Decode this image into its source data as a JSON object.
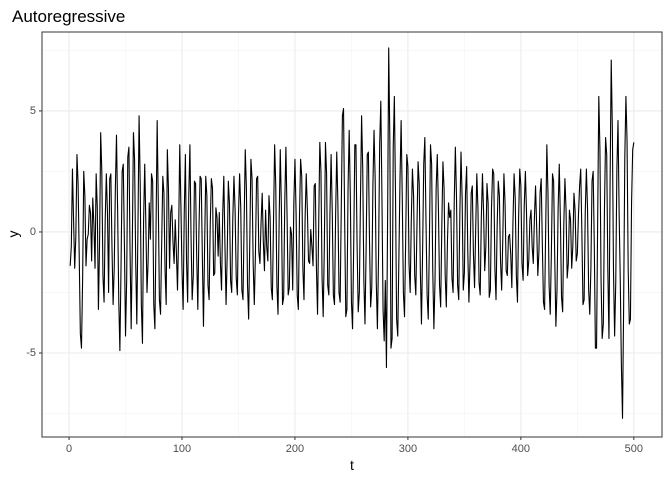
{
  "chart_data": {
    "type": "line",
    "title": "Autoregressive",
    "x_label": "t",
    "y_label": "y",
    "xlim": [
      -23.95,
      524.95
    ],
    "ylim": [
      -8.47,
      8.26
    ],
    "xticks": [
      0,
      100,
      200,
      300,
      400,
      500
    ],
    "yticks": [
      -5,
      0,
      5
    ],
    "x_minor_ticks": [
      50,
      150,
      250,
      350,
      450
    ],
    "y_minor_ticks": [
      -7.5,
      -2.5,
      2.5,
      7.5
    ],
    "grid": true,
    "color": "#000000",
    "x": [
      1,
      2,
      3,
      4,
      5,
      6,
      7,
      8,
      9,
      10,
      11,
      12,
      13,
      14,
      15,
      16,
      17,
      18,
      19,
      20,
      21,
      22,
      23,
      24,
      25,
      26,
      27,
      28,
      29,
      30,
      31,
      32,
      33,
      34,
      35,
      36,
      37,
      38,
      39,
      40,
      41,
      42,
      43,
      44,
      45,
      46,
      47,
      48,
      49,
      50,
      51,
      52,
      53,
      54,
      55,
      56,
      57,
      58,
      59,
      60,
      61,
      62,
      63,
      64,
      65,
      66,
      67,
      68,
      69,
      70,
      71,
      72,
      73,
      74,
      75,
      76,
      77,
      78,
      79,
      80,
      81,
      82,
      83,
      84,
      85,
      86,
      87,
      88,
      89,
      90,
      91,
      92,
      93,
      94,
      95,
      96,
      97,
      98,
      99,
      100,
      101,
      102,
      103,
      104,
      105,
      106,
      107,
      108,
      109,
      110,
      111,
      112,
      113,
      114,
      115,
      116,
      117,
      118,
      119,
      120,
      121,
      122,
      123,
      124,
      125,
      126,
      127,
      128,
      129,
      130,
      131,
      132,
      133,
      134,
      135,
      136,
      137,
      138,
      139,
      140,
      141,
      142,
      143,
      144,
      145,
      146,
      147,
      148,
      149,
      150,
      151,
      152,
      153,
      154,
      155,
      156,
      157,
      158,
      159,
      160,
      161,
      162,
      163,
      164,
      165,
      166,
      167,
      168,
      169,
      170,
      171,
      172,
      173,
      174,
      175,
      176,
      177,
      178,
      179,
      180,
      181,
      182,
      183,
      184,
      185,
      186,
      187,
      188,
      189,
      190,
      191,
      192,
      193,
      194,
      195,
      196,
      197,
      198,
      199,
      200,
      201,
      202,
      203,
      204,
      205,
      206,
      207,
      208,
      209,
      210,
      211,
      212,
      213,
      214,
      215,
      216,
      217,
      218,
      219,
      220,
      221,
      222,
      223,
      224,
      225,
      226,
      227,
      228,
      229,
      230,
      231,
      232,
      233,
      234,
      235,
      236,
      237,
      238,
      239,
      240,
      241,
      242,
      243,
      244,
      245,
      246,
      247,
      248,
      249,
      250,
      251,
      252,
      253,
      254,
      255,
      256,
      257,
      258,
      259,
      260,
      261,
      262,
      263,
      264,
      265,
      266,
      267,
      268,
      269,
      270,
      271,
      272,
      273,
      274,
      275,
      276,
      277,
      278,
      279,
      280,
      281,
      282,
      283,
      284,
      285,
      286,
      287,
      288,
      289,
      290,
      291,
      292,
      293,
      294,
      295,
      296,
      297,
      298,
      299,
      300,
      301,
      302,
      303,
      304,
      305,
      306,
      307,
      308,
      309,
      310,
      311,
      312,
      313,
      314,
      315,
      316,
      317,
      318,
      319,
      320,
      321,
      322,
      323,
      324,
      325,
      326,
      327,
      328,
      329,
      330,
      331,
      332,
      333,
      334,
      335,
      336,
      337,
      338,
      339,
      340,
      341,
      342,
      343,
      344,
      345,
      346,
      347,
      348,
      349,
      350,
      351,
      352,
      353,
      354,
      355,
      356,
      357,
      358,
      359,
      360,
      361,
      362,
      363,
      364,
      365,
      366,
      367,
      368,
      369,
      370,
      371,
      372,
      373,
      374,
      375,
      376,
      377,
      378,
      379,
      380,
      381,
      382,
      383,
      384,
      385,
      386,
      387,
      388,
      389,
      390,
      391,
      392,
      393,
      394,
      395,
      396,
      397,
      398,
      399,
      400,
      401,
      402,
      403,
      404,
      405,
      406,
      407,
      408,
      409,
      410,
      411,
      412,
      413,
      414,
      415,
      416,
      417,
      418,
      419,
      420,
      421,
      422,
      423,
      424,
      425,
      426,
      427,
      428,
      429,
      430,
      431,
      432,
      433,
      434,
      435,
      436,
      437,
      438,
      439,
      440,
      441,
      442,
      443,
      444,
      445,
      446,
      447,
      448,
      449,
      450,
      451,
      452,
      453,
      454,
      455,
      456,
      457,
      458,
      459,
      460,
      461,
      462,
      463,
      464,
      465,
      466,
      467,
      468,
      469,
      470,
      471,
      472,
      473,
      474,
      475,
      476,
      477,
      478,
      479,
      480,
      481,
      482,
      483,
      484,
      485,
      486,
      487,
      488,
      489,
      490,
      491,
      492,
      493,
      494,
      495,
      496,
      497,
      498,
      499,
      500
    ],
    "values": [
      -1.4,
      -0.6,
      2.6,
      0.5,
      -1.5,
      -0.2,
      3.2,
      2.0,
      -1.0,
      -4.2,
      -4.8,
      -2.0,
      2.5,
      1.5,
      -1.4,
      -0.3,
      -0.1,
      1.1,
      0.8,
      -1.2,
      1.4,
      0.3,
      -1.5,
      2.4,
      1.0,
      -3.2,
      -0.5,
      4.1,
      2.5,
      -1.8,
      -2.9,
      0.5,
      2.4,
      0.8,
      -2.5,
      2.2,
      2.4,
      -0.6,
      -3.0,
      -1.5,
      1.8,
      4.0,
      0.9,
      -2.8,
      -4.9,
      -1.5,
      2.5,
      2.8,
      -0.5,
      -4.3,
      -2.0,
      3.1,
      3.5,
      -0.8,
      -4.0,
      -0.5,
      4.1,
      3.0,
      -1.2,
      -3.8,
      0.2,
      4.8,
      2.0,
      -3.0,
      -4.6,
      0.5,
      2.8,
      0.3,
      -2.5,
      -1.2,
      1.2,
      -0.3,
      2.4,
      2.1,
      -3.0,
      -4.0,
      0.1,
      4.6,
      1.2,
      -2.8,
      -3.4,
      -0.5,
      2.3,
      1.6,
      -1.6,
      -3.0,
      3.4,
      1.8,
      -1.5,
      0.8,
      1.1,
      -0.4,
      -1.3,
      0.5,
      -0.8,
      -2.4,
      -0.1,
      3.6,
      1.1,
      -1.6,
      -3.2,
      0.8,
      3.2,
      -1.2,
      -2.9,
      1.5,
      3.6,
      -0.2,
      -2.8,
      -1.8,
      2.1,
      2.0,
      -1.0,
      -3.2,
      0.1,
      2.3,
      2.2,
      -1.0,
      -3.9,
      -0.6,
      2.3,
      1.5,
      -2.2,
      -2.8,
      0.3,
      2.2,
      1.8,
      -1.8,
      -1.7,
      1.0,
      0.6,
      -1.0,
      0.8,
      -1.3,
      -2.4,
      0.7,
      2.3,
      -0.5,
      -3.0,
      -1.0,
      2.1,
      1.2,
      -2.0,
      -2.5,
      0.6,
      2.3,
      0.9,
      -1.9,
      -2.6,
      0.7,
      2.4,
      1.0,
      -2.4,
      -2.8,
      0.4,
      3.4,
      1.8,
      -2.2,
      -3.6,
      -0.4,
      3.0,
      2.2,
      -1.3,
      -3.0,
      -0.9,
      2.2,
      2.3,
      -0.8,
      -1.3,
      0.4,
      1.6,
      -0.4,
      -1.6,
      0.9,
      -0.6,
      -1.2,
      1.5,
      0.6,
      -2.3,
      -2.8,
      0.4,
      3.6,
      1.9,
      -2.2,
      -3.4,
      0.5,
      3.4,
      1.0,
      -3.0,
      -2.7,
      1.3,
      3.5,
      0.7,
      -2.6,
      -2.3,
      0.2,
      -0.1,
      -2.4,
      1.2,
      3.0,
      0.8,
      -2.6,
      -3.2,
      0.6,
      3.0,
      2.3,
      -1.5,
      -2.8,
      0.6,
      2.4,
      0.9,
      -1.2,
      -1.3,
      0.1,
      -0.6,
      -1.4,
      1.9,
      2.0,
      -1.5,
      -3.4,
      0.3,
      3.7,
      2.5,
      -1.9,
      -3.5,
      -0.6,
      3.7,
      2.4,
      -2.2,
      -2.6,
      0.8,
      3.2,
      0.9,
      -2.6,
      -3.0,
      0.7,
      3.3,
      1.2,
      -2.5,
      -2.9,
      1.0,
      4.8,
      5.1,
      0.5,
      -3.5,
      -3.2,
      1.8,
      4.2,
      1.5,
      -2.9,
      -4.0,
      -0.6,
      3.6,
      3.6,
      -0.5,
      -3.3,
      -2.5,
      1.4,
      4.8,
      2.6,
      -2.0,
      -3.8,
      -0.7,
      3.2,
      3.3,
      -0.4,
      -3.1,
      -2.3,
      1.9,
      4.2,
      2.2,
      -2.1,
      -4.0,
      -1.0,
      3.6,
      5.4,
      1.5,
      -3.2,
      -4.5,
      -2.0,
      -5.6,
      0.4,
      7.6,
      3.8,
      -4.8,
      -4.4,
      3.5,
      5.6,
      1.6,
      -3.6,
      -4.3,
      -1.1,
      2.2,
      4.6,
      1.4,
      -2.5,
      -3.5,
      -0.4,
      3.2,
      2.7,
      -1.3,
      -2.5,
      0.5,
      2.6,
      1.5,
      -1.8,
      -2.6,
      0.2,
      2.9,
      2.0,
      -1.6,
      -3.8,
      -0.8,
      2.8,
      3.9,
      0.5,
      -2.6,
      -3.6,
      -0.5,
      3.6,
      2.8,
      -1.6,
      -4.0,
      -2.0,
      1.8,
      3.2,
      1.0,
      -2.2,
      -3.1,
      0.2,
      2.9,
      1.8,
      -1.8,
      -3.1,
      -0.4,
      1.2,
      0.6,
      0.9,
      -1.9,
      -2.5,
      1.2,
      3.5,
      1.5,
      -2.2,
      -2.8,
      0.8,
      3.3,
      1.4,
      -2.4,
      -1.7,
      1.6,
      2.7,
      -0.8,
      -2.9,
      -1.2,
      1.6,
      1.9,
      -0.9,
      -2.3,
      0.1,
      2.4,
      1.0,
      -2.1,
      -2.6,
      0.6,
      2.4,
      0.8,
      -1.6,
      -0.6,
      2.0,
      1.2,
      -2.7,
      -2.4,
      1.0,
      2.6,
      2.4,
      -1.5,
      -2.8,
      0.2,
      2.1,
      1.5,
      -1.2,
      -2.4,
      -0.3,
      2.4,
      1.2,
      -1.6,
      -1.8,
      -0.2,
      -0.1,
      -0.9,
      -2.3,
      0.4,
      2.4,
      1.4,
      -1.8,
      -2.9,
      0.6,
      2.6,
      1.9,
      -1.3,
      -2.0,
      1.1,
      2.5,
      0.8,
      -1.8,
      -1.2,
      0.5,
      0.9,
      -0.6,
      -1.3,
      0.6,
      1.9,
      0.2,
      -1.8,
      -0.8,
      1.6,
      2.2,
      -0.5,
      -2.9,
      -3.2,
      0.2,
      3.6,
      1.6,
      -2.2,
      -3.4,
      -0.9,
      2.4,
      2.1,
      -1.1,
      -3.9,
      -2.4,
      1.0,
      2.8,
      0.5,
      -2.7,
      -3.3,
      0.3,
      2.2,
      0.9,
      -1.9,
      -1.3,
      0.9,
      0.5,
      -1.5,
      -0.6,
      1.6,
      0.9,
      -1.2,
      -0.9,
      0.7,
      1.9,
      2.6,
      0.0,
      -3.0,
      -2.8,
      0.8,
      2.6,
      1.0,
      -2.4,
      -3.4,
      -1.5,
      2.1,
      2.5,
      -0.5,
      -4.8,
      -4.8,
      0.5,
      5.6,
      3.4,
      -2.0,
      -4.4,
      -3.8,
      0.9,
      3.9,
      3.2,
      -1.6,
      -4.4,
      2.1,
      7.1,
      4.2,
      -1.6,
      -4.3,
      -2.1,
      2.6,
      4.6,
      0.8,
      -2.0,
      -5.5,
      -7.7,
      -3.0,
      3.0,
      5.6,
      3.8,
      -1.5,
      -3.8,
      -3.6,
      1.2,
      3.4,
      3.7
    ]
  }
}
